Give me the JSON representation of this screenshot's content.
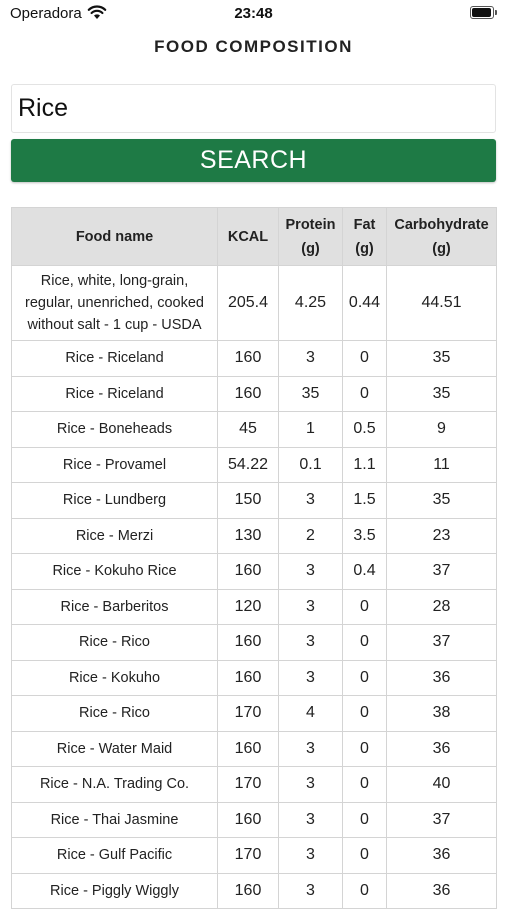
{
  "status_bar": {
    "carrier": "Operadora",
    "time": "23:48"
  },
  "header": {
    "title": "FOOD COMPOSITION"
  },
  "search": {
    "value": "Rice",
    "button_label": "SEARCH"
  },
  "colors": {
    "accent": "#1e7a45",
    "header_bg": "#e0e0e0"
  },
  "table": {
    "columns": [
      {
        "line1": "Food name",
        "line2": ""
      },
      {
        "line1": "KCAL",
        "line2": ""
      },
      {
        "line1": "Protein",
        "line2": "(g)"
      },
      {
        "line1": "Fat",
        "line2": "(g)"
      },
      {
        "line1": "Carbohydrate",
        "line2": "(g)"
      }
    ],
    "rows": [
      {
        "name_lines": [
          "Rice, white, long-grain,",
          "regular, unenriched, cooked",
          "without salt - 1 cup - USDA"
        ],
        "kcal": "205.4",
        "protein": "4.25",
        "fat": "0.44",
        "carb": "44.51"
      },
      {
        "name_lines": [
          "Rice - Riceland"
        ],
        "kcal": "160",
        "protein": "3",
        "fat": "0",
        "carb": "35"
      },
      {
        "name_lines": [
          "Rice - Riceland"
        ],
        "kcal": "160",
        "protein": "35",
        "fat": "0",
        "carb": "35"
      },
      {
        "name_lines": [
          "Rice - Boneheads"
        ],
        "kcal": "45",
        "protein": "1",
        "fat": "0.5",
        "carb": "9"
      },
      {
        "name_lines": [
          "Rice - Provamel"
        ],
        "kcal": "54.22",
        "protein": "0.1",
        "fat": "1.1",
        "carb": "11"
      },
      {
        "name_lines": [
          "Rice - Lundberg"
        ],
        "kcal": "150",
        "protein": "3",
        "fat": "1.5",
        "carb": "35"
      },
      {
        "name_lines": [
          "Rice - Merzi"
        ],
        "kcal": "130",
        "protein": "2",
        "fat": "3.5",
        "carb": "23"
      },
      {
        "name_lines": [
          "Rice - Kokuho Rice"
        ],
        "kcal": "160",
        "protein": "3",
        "fat": "0.4",
        "carb": "37"
      },
      {
        "name_lines": [
          "Rice - Barberitos"
        ],
        "kcal": "120",
        "protein": "3",
        "fat": "0",
        "carb": "28"
      },
      {
        "name_lines": [
          "Rice - Rico"
        ],
        "kcal": "160",
        "protein": "3",
        "fat": "0",
        "carb": "37"
      },
      {
        "name_lines": [
          "Rice - Kokuho"
        ],
        "kcal": "160",
        "protein": "3",
        "fat": "0",
        "carb": "36"
      },
      {
        "name_lines": [
          "Rice - Rico"
        ],
        "kcal": "170",
        "protein": "4",
        "fat": "0",
        "carb": "38"
      },
      {
        "name_lines": [
          "Rice - Water Maid"
        ],
        "kcal": "160",
        "protein": "3",
        "fat": "0",
        "carb": "36"
      },
      {
        "name_lines": [
          "Rice - N.A. Trading Co."
        ],
        "kcal": "170",
        "protein": "3",
        "fat": "0",
        "carb": "40"
      },
      {
        "name_lines": [
          "Rice - Thai Jasmine"
        ],
        "kcal": "160",
        "protein": "3",
        "fat": "0",
        "carb": "37"
      },
      {
        "name_lines": [
          "Rice - Gulf Pacific"
        ],
        "kcal": "170",
        "protein": "3",
        "fat": "0",
        "carb": "36"
      },
      {
        "name_lines": [
          "Rice - Piggly Wiggly"
        ],
        "kcal": "160",
        "protein": "3",
        "fat": "0",
        "carb": "36"
      }
    ]
  }
}
